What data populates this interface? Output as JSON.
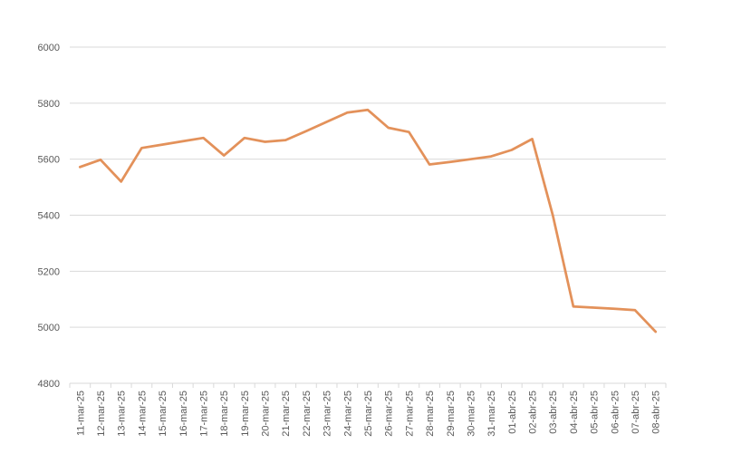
{
  "chart_data": {
    "type": "line",
    "title": "",
    "xlabel": "",
    "ylabel": "",
    "ylim": [
      4800,
      6000
    ],
    "yticks": [
      4800,
      5000,
      5200,
      5400,
      5600,
      5800,
      6000
    ],
    "grid": true,
    "legend": "none",
    "line_color": "#E3915A",
    "grid_color": "#D9D9D9",
    "categories": [
      "11-mar-25",
      "12-mar-25",
      "13-mar-25",
      "14-mar-25",
      "15-mar-25",
      "16-mar-25",
      "17-mar-25",
      "18-mar-25",
      "19-mar-25",
      "20-mar-25",
      "21-mar-25",
      "22-mar-25",
      "23-mar-25",
      "24-mar-25",
      "25-mar-25",
      "26-mar-25",
      "27-mar-25",
      "28-mar-25",
      "29-mar-25",
      "30-mar-25",
      "31-mar-25",
      "01-abr-25",
      "02-abr-25",
      "03-abr-25",
      "04-abr-25",
      "05-abr-25",
      "06-abr-25",
      "07-abr-25",
      "08-abr-25"
    ],
    "series": [
      {
        "values": [
          5572,
          5598,
          5520,
          5640,
          5652,
          5664,
          5676,
          5613,
          5676,
          5662,
          5668,
          5700,
          5733,
          5766,
          5776,
          5712,
          5697,
          5581,
          5590,
          5600,
          5610,
          5633,
          5672,
          5400,
          5074,
          5070,
          5066,
          5061,
          4984
        ]
      }
    ]
  }
}
